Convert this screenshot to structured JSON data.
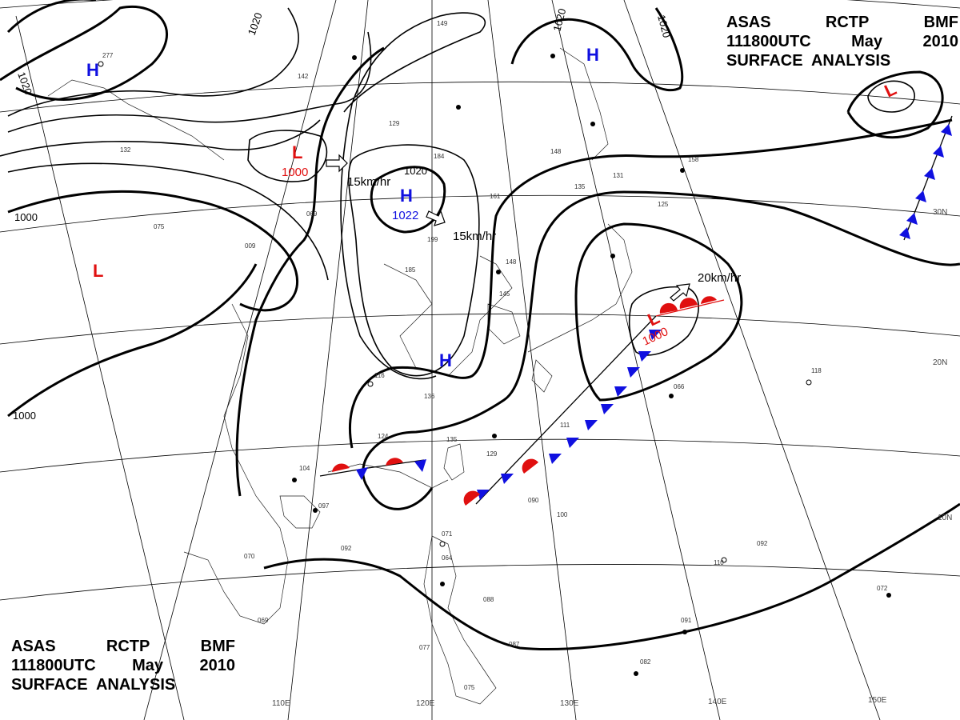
{
  "header_top": {
    "line1": [
      "ASAS",
      "RCTP",
      "BMF"
    ],
    "line2": [
      "111800UTC",
      "May",
      "2010"
    ],
    "line3": "SURFACE  ANALYSIS"
  },
  "header_bottom": {
    "line1": [
      "ASAS",
      "RCTP",
      "BMF"
    ],
    "line2": [
      "111800UTC",
      "May",
      "2010"
    ],
    "line3": "SURFACE  ANALYSIS"
  },
  "longitude_labels": [
    "110E",
    "120E",
    "130E",
    "140E",
    "150E"
  ],
  "latitude_labels": [
    "30N",
    "20N",
    "10N"
  ],
  "colors": {
    "high": "#1010e0",
    "low": "#e01010",
    "line": "#000000"
  },
  "systems": {
    "high_far_nw": {
      "symbol": "H"
    },
    "high_ne": {
      "symbol": "H"
    },
    "high_central": {
      "symbol": "H",
      "pressure": "1022",
      "motion": "15km/hr"
    },
    "high_south": {
      "symbol": "H"
    },
    "low_west": {
      "symbol": "L"
    },
    "low_north": {
      "symbol": "L",
      "pressure": "1000",
      "motion": "15km/hr"
    },
    "low_japan": {
      "symbol": "L",
      "pressure": "1000",
      "motion": "20km/hr"
    },
    "low_far_ne": {
      "symbol": "L"
    }
  },
  "isobar_labels": [
    "1020",
    "1020",
    "1020",
    "1020",
    "1000",
    "1000",
    "1000",
    "1020"
  ],
  "station_samples": [
    "149",
    "277",
    "132",
    "142",
    "184",
    "129",
    "199",
    "185",
    "148",
    "145",
    "116",
    "136",
    "124",
    "097",
    "092",
    "070",
    "069",
    "071",
    "064",
    "088",
    "087",
    "077",
    "075",
    "082",
    "091",
    "110",
    "092",
    "072",
    "118",
    "066",
    "158",
    "125",
    "131",
    "135",
    "148",
    "161",
    "069",
    "009",
    "075",
    "135",
    "129",
    "111",
    "090",
    "100",
    "104"
  ]
}
